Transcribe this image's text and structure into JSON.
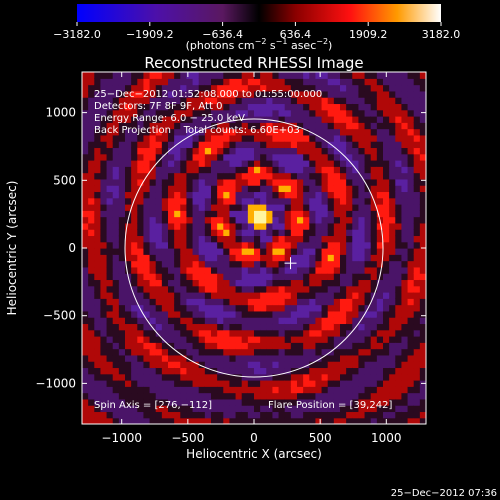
{
  "chart_data": {
    "type": "heatmap",
    "title": "Reconstructed RHESSI Image",
    "xlabel": "Heliocentric X (arcsec)",
    "ylabel": "Heliocentric Y (arcsec)",
    "xlim": [
      -1300,
      1300
    ],
    "ylim": [
      -1300,
      1300
    ],
    "xticks": [
      -1000,
      -500,
      0,
      500,
      1000
    ],
    "xtick_labels": [
      "−1000",
      "−500",
      "0",
      "500",
      "1000"
    ],
    "yticks": [
      -1000,
      -500,
      0,
      500,
      1000
    ],
    "ytick_labels": [
      "−1000",
      "−500",
      "0",
      "500",
      "1000"
    ],
    "colorbar": {
      "min": -3182.0,
      "max": 3182.0,
      "ticks": [
        -3182.0,
        -1909.2,
        -636.4,
        636.4,
        1909.2,
        3182.0
      ],
      "tick_labels": [
        "−3182.0",
        "−1909.2",
        "−636.4",
        "636.4",
        "1909.2",
        "3182.0"
      ],
      "unit_main": "(photons cm",
      "unit_sup1": "−2",
      "unit_mid": " s",
      "unit_sup2": "−1",
      "unit_end": " asec",
      "unit_sup3": "−2",
      "unit_close": ")"
    },
    "annotations": [
      "25−Dec−2012 01:52:08.000 to 01:55:00.000",
      "Detectors: 7F 8F 9F, Att 0",
      "Energy Range: 6.0 − 25.0 keV",
      "Back Projection    Total counts: 6.60E+03"
    ],
    "spin_axis_label": "Spin Axis = [276,−112]",
    "flare_position_label": "Flare Position = [39,242]",
    "spin_axis": [
      276,
      -112
    ],
    "flare_position": [
      39,
      242
    ],
    "solar_limb_radius": 975,
    "timestamp": "25−Dec−2012 07:36"
  }
}
